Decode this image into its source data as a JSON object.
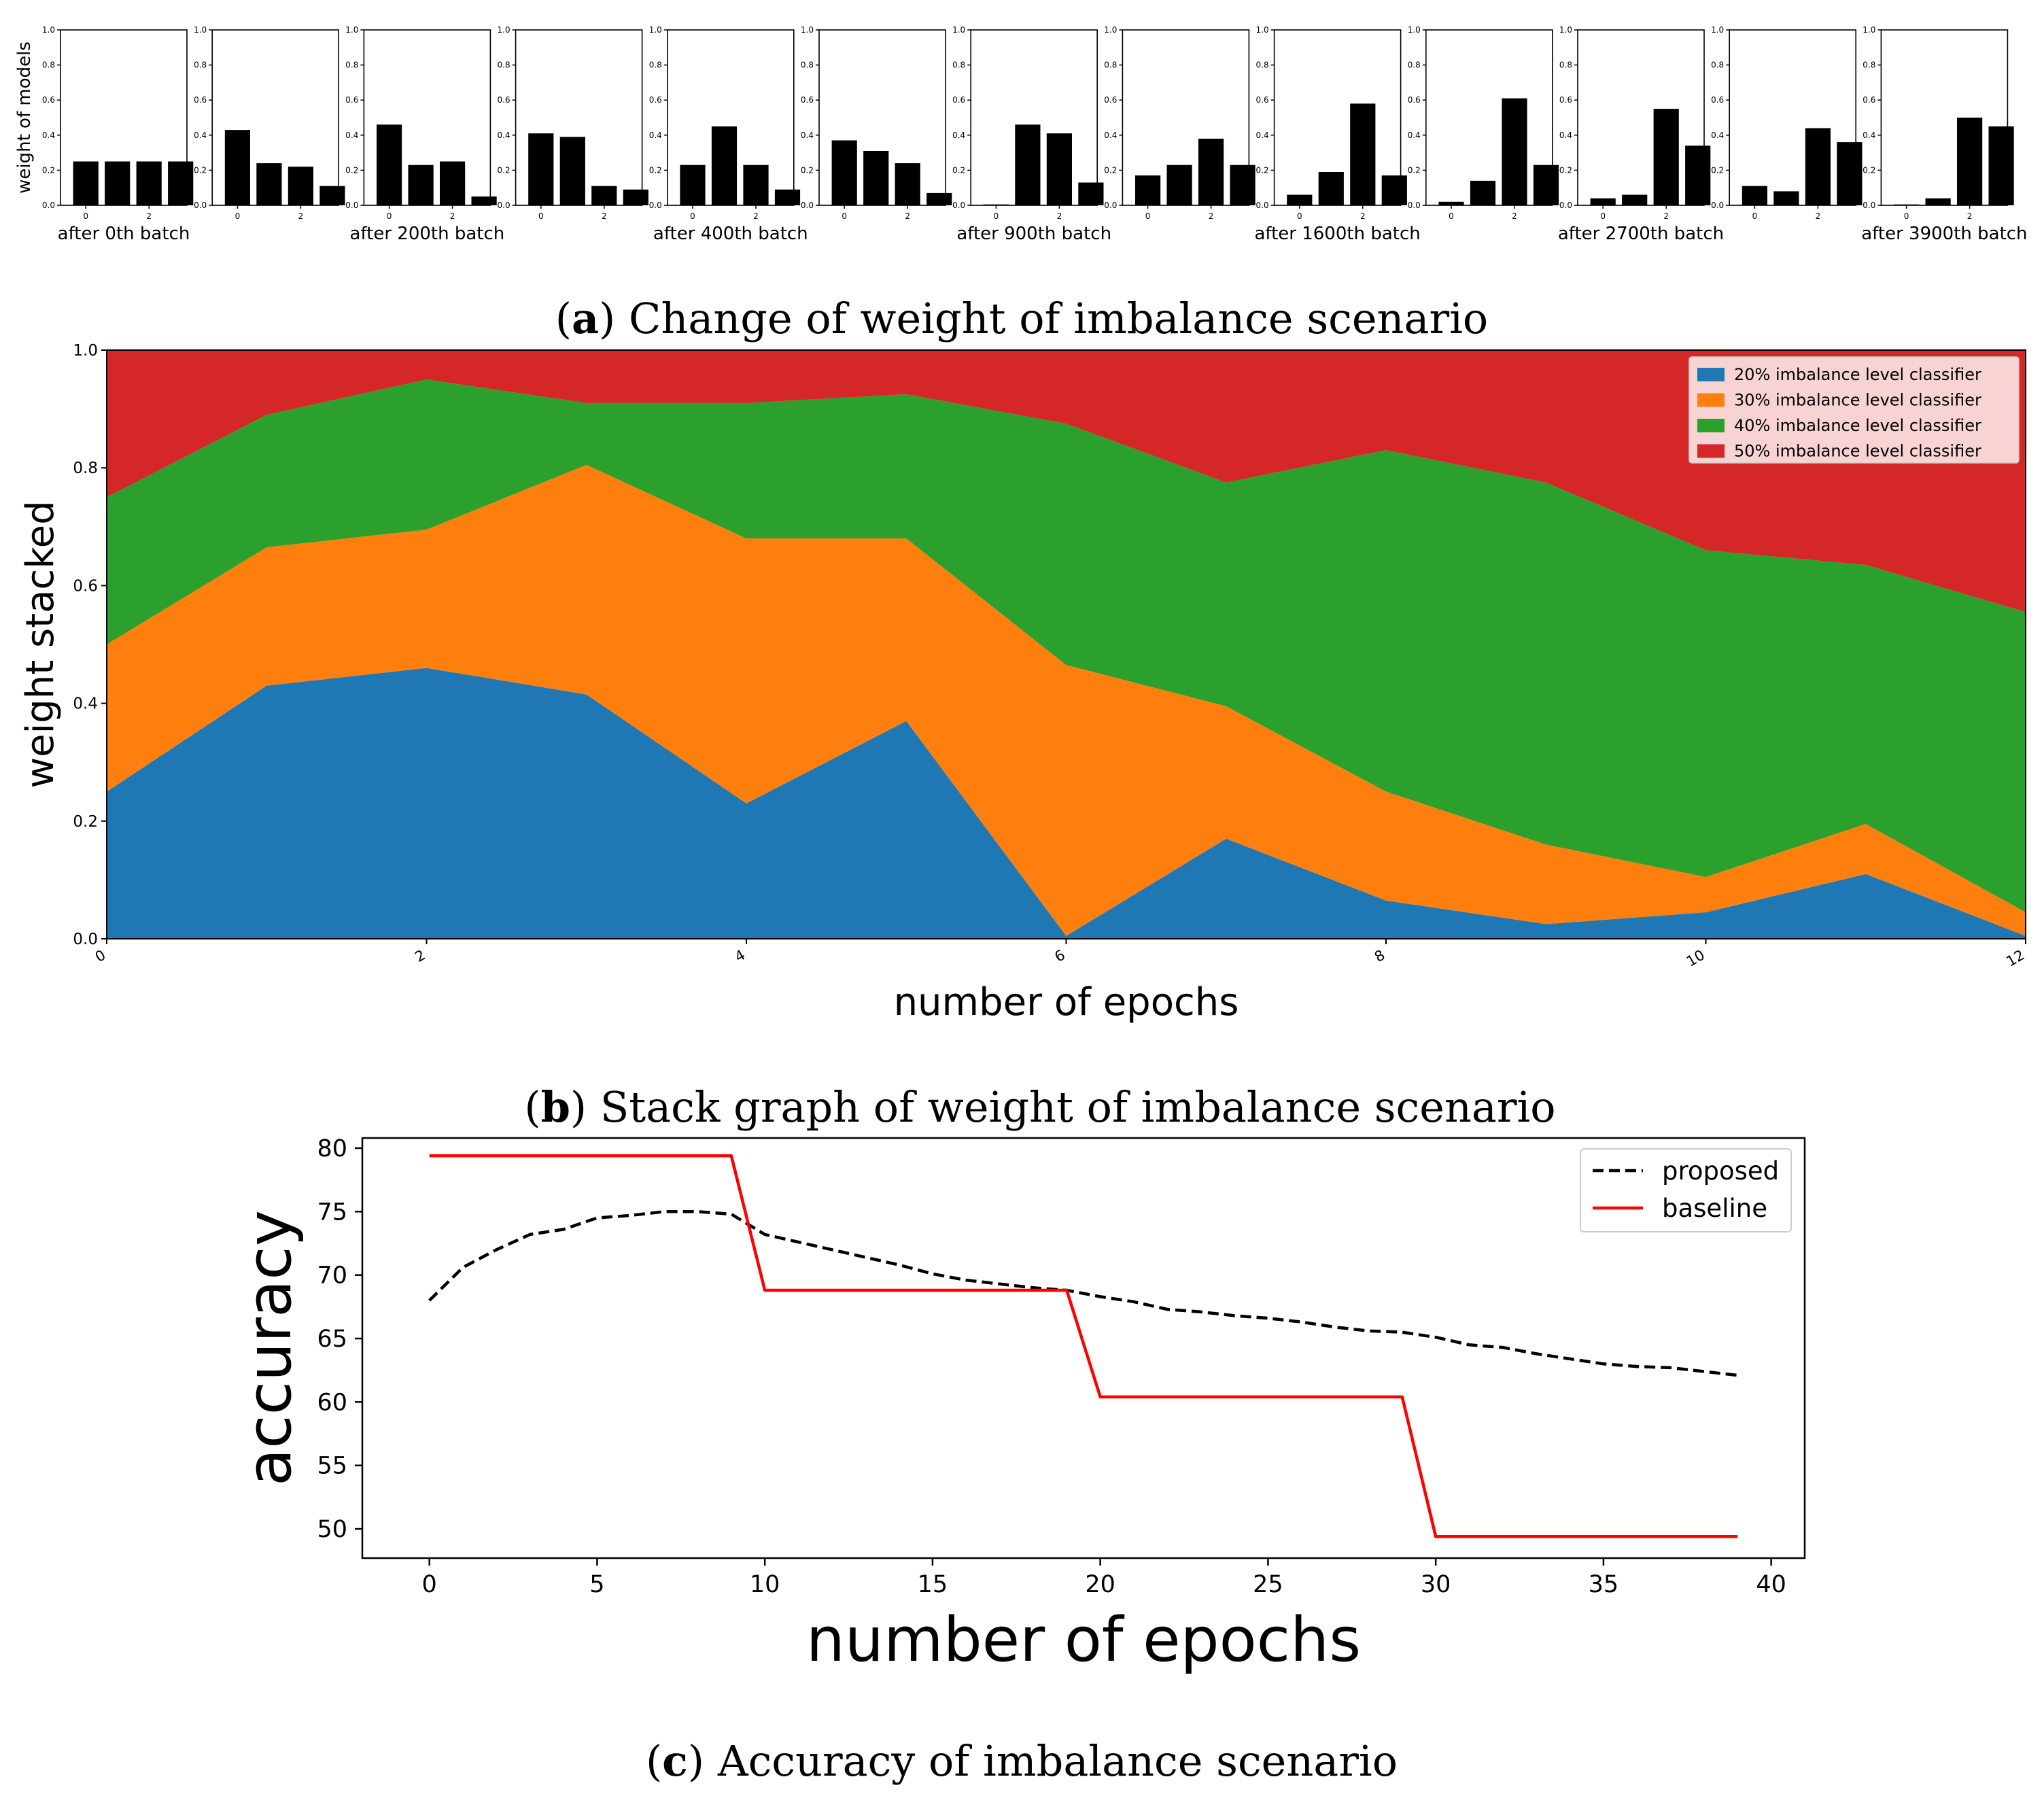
{
  "caption_a": {
    "letter": "a",
    "text": "Change of weight of imbalance scenario"
  },
  "caption_b": {
    "letter": "b",
    "text": "Stack graph of weight of imbalance scenario"
  },
  "caption_c": {
    "letter": "c",
    "text": "Accuracy of imbalance scenario"
  },
  "chart_data": [
    {
      "id": "a",
      "type": "bar",
      "title": "Change of weight of imbalance scenario",
      "ylabel": "weight of models",
      "ylim": [
        0,
        1.0
      ],
      "yticks": [
        "0.0",
        "0.2",
        "0.4",
        "0.6",
        "0.8",
        "1.0"
      ],
      "xticks": [
        "0",
        "2"
      ],
      "panels": [
        {
          "label": "after 0th batch",
          "values": [
            0.25,
            0.25,
            0.25,
            0.25
          ]
        },
        {
          "label": "",
          "values": [
            0.43,
            0.24,
            0.22,
            0.11
          ]
        },
        {
          "label": "after 200th batch",
          "values": [
            0.46,
            0.23,
            0.25,
            0.05
          ]
        },
        {
          "label": "",
          "values": [
            0.41,
            0.39,
            0.11,
            0.09
          ]
        },
        {
          "label": "after 400th batch",
          "values": [
            0.23,
            0.45,
            0.23,
            0.09
          ]
        },
        {
          "label": "",
          "values": [
            0.37,
            0.31,
            0.24,
            0.07
          ]
        },
        {
          "label": "after 900th batch",
          "values": [
            0.005,
            0.46,
            0.41,
            0.13
          ]
        },
        {
          "label": "",
          "values": [
            0.17,
            0.23,
            0.38,
            0.23
          ]
        },
        {
          "label": "after 1600th batch",
          "values": [
            0.06,
            0.19,
            0.58,
            0.17
          ]
        },
        {
          "label": "",
          "values": [
            0.02,
            0.14,
            0.61,
            0.23
          ]
        },
        {
          "label": "after 2700th batch",
          "values": [
            0.04,
            0.06,
            0.55,
            0.34
          ]
        },
        {
          "label": "",
          "values": [
            0.11,
            0.08,
            0.44,
            0.36
          ]
        },
        {
          "label": "after 3900th batch",
          "values": [
            0.005,
            0.04,
            0.5,
            0.45
          ]
        }
      ]
    },
    {
      "id": "b",
      "type": "area",
      "title": "Stack graph of weight of imbalance scenario",
      "xlabel": "number of epochs",
      "ylabel": "weight stacked",
      "xlim": [
        0,
        12
      ],
      "ylim": [
        0,
        1.0
      ],
      "xticks": [
        "0",
        "2",
        "4",
        "6",
        "8",
        "10",
        "12"
      ],
      "yticks": [
        "0.0",
        "0.2",
        "0.4",
        "0.6",
        "0.8",
        "1.0"
      ],
      "legend_position": "top-right",
      "x": [
        0,
        1,
        2,
        3,
        4,
        5,
        6,
        7,
        8,
        9,
        10,
        11,
        12
      ],
      "series": [
        {
          "name": "20% imbalance level classifier",
          "color": "#1f77b4",
          "values": [
            0.25,
            0.43,
            0.46,
            0.415,
            0.23,
            0.37,
            0.005,
            0.17,
            0.065,
            0.025,
            0.045,
            0.11,
            0.005
          ]
        },
        {
          "name": "30% imbalance level classifier",
          "color": "#ff7f0e",
          "values": [
            0.25,
            0.235,
            0.235,
            0.39,
            0.45,
            0.31,
            0.46,
            0.225,
            0.185,
            0.135,
            0.06,
            0.085,
            0.04
          ]
        },
        {
          "name": "40% imbalance level classifier",
          "color": "#2ca02c",
          "values": [
            0.25,
            0.225,
            0.255,
            0.105,
            0.23,
            0.245,
            0.41,
            0.38,
            0.58,
            0.615,
            0.555,
            0.44,
            0.51
          ]
        },
        {
          "name": "50% imbalance level classifier",
          "color": "#d62728",
          "values": [
            0.25,
            0.11,
            0.05,
            0.09,
            0.09,
            0.075,
            0.125,
            0.225,
            0.17,
            0.225,
            0.34,
            0.365,
            0.445
          ]
        }
      ]
    },
    {
      "id": "c",
      "type": "line",
      "title": "Accuracy of imbalance scenario",
      "xlabel": "number of epochs",
      "ylabel": "accuracy",
      "xlim": [
        -2,
        41
      ],
      "ylim": [
        47.7,
        80.8
      ],
      "xticks": [
        0,
        5,
        10,
        15,
        20,
        25,
        30,
        35,
        40
      ],
      "yticks": [
        50,
        55,
        60,
        65,
        70,
        75,
        80
      ],
      "legend_position": "top-right",
      "series": [
        {
          "name": "proposed",
          "color": "#000000",
          "style": "dashed",
          "x": [
            0,
            1,
            2,
            3,
            4,
            5,
            6,
            7,
            8,
            9,
            10,
            11,
            12,
            13,
            14,
            15,
            16,
            17,
            18,
            19,
            20,
            21,
            22,
            23,
            24,
            25,
            26,
            27,
            28,
            29,
            30,
            31,
            32,
            33,
            34,
            35,
            36,
            37,
            38,
            39
          ],
          "y": [
            68.0,
            70.6,
            72.0,
            73.2,
            73.6,
            74.5,
            74.7,
            75.0,
            75.0,
            74.8,
            73.2,
            72.6,
            72.0,
            71.4,
            70.8,
            70.1,
            69.6,
            69.3,
            69.0,
            68.8,
            68.3,
            67.9,
            67.3,
            67.1,
            66.8,
            66.6,
            66.3,
            65.9,
            65.6,
            65.5,
            65.1,
            64.5,
            64.3,
            63.8,
            63.4,
            63.0,
            62.8,
            62.7,
            62.4,
            62.1
          ]
        },
        {
          "name": "baseline",
          "color": "#ff0000",
          "style": "solid",
          "x": [
            0,
            9,
            10,
            19,
            20,
            29,
            30,
            39
          ],
          "y": [
            79.4,
            79.4,
            68.8,
            68.8,
            60.4,
            60.4,
            49.4,
            49.4
          ]
        }
      ]
    }
  ]
}
